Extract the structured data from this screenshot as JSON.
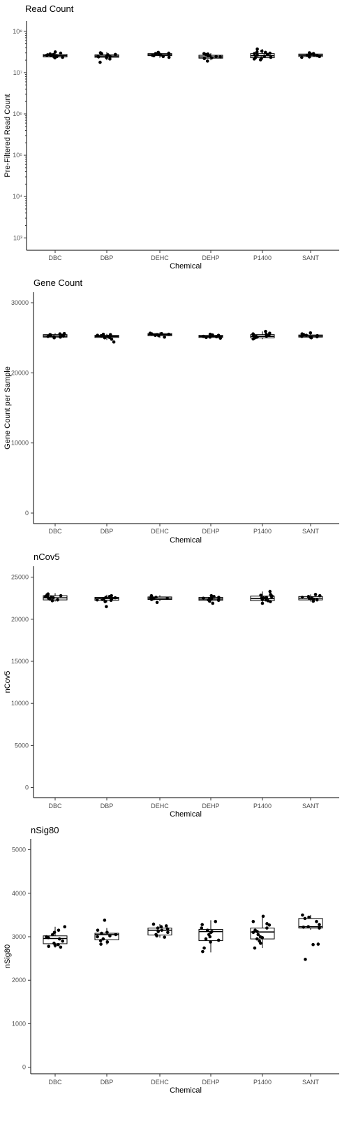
{
  "chart_data": [
    {
      "type": "box",
      "title": "Read Count",
      "xlabel": "Chemical",
      "ylabel": "Pre-Filtered Read Count",
      "yscale": "log10",
      "ylim_exp": [
        2.7,
        8.25
      ],
      "yticks": [
        {
          "exp": 3,
          "label": "10³"
        },
        {
          "exp": 4,
          "label": "10⁴"
        },
        {
          "exp": 5,
          "label": "10⁵"
        },
        {
          "exp": 6,
          "label": "10⁶"
        },
        {
          "exp": 7,
          "label": "10⁷"
        },
        {
          "exp": 8,
          "label": "10⁸"
        }
      ],
      "categories": [
        "DBC",
        "DBP",
        "DEHC",
        "DEHP",
        "P1400",
        "SANT"
      ],
      "boxes_exp": [
        {
          "min": 7.35,
          "q1": 7.38,
          "median": 7.41,
          "q3": 7.44,
          "max": 7.52
        },
        {
          "min": 7.3,
          "q1": 7.37,
          "median": 7.4,
          "q3": 7.43,
          "max": 7.5
        },
        {
          "min": 7.36,
          "q1": 7.41,
          "median": 7.43,
          "q3": 7.46,
          "max": 7.5
        },
        {
          "min": 7.3,
          "q1": 7.35,
          "median": 7.38,
          "q3": 7.42,
          "max": 7.47
        },
        {
          "min": 7.31,
          "q1": 7.36,
          "median": 7.41,
          "q3": 7.46,
          "max": 7.57
        },
        {
          "min": 7.36,
          "q1": 7.39,
          "median": 7.42,
          "q3": 7.45,
          "max": 7.5
        }
      ],
      "points_exp": [
        [
          7.36,
          7.4,
          7.43,
          7.45,
          7.38,
          7.5,
          7.42,
          7.37,
          7.39,
          7.44,
          7.41,
          7.47
        ],
        [
          7.33,
          7.38,
          7.41,
          7.46,
          7.39,
          7.25,
          7.43,
          7.36,
          7.48,
          7.4,
          7.44
        ],
        [
          7.37,
          7.42,
          7.45,
          7.47,
          7.41,
          7.49,
          7.43,
          7.39,
          7.46
        ],
        [
          7.34,
          7.38,
          7.41,
          7.44,
          7.36,
          7.28,
          7.46,
          7.39,
          7.42,
          7.45
        ],
        [
          7.33,
          7.37,
          7.42,
          7.47,
          7.52,
          7.57,
          7.4,
          7.31,
          7.44,
          7.49,
          7.36,
          7.5,
          7.35,
          7.46
        ],
        [
          7.37,
          7.4,
          7.43,
          7.46,
          7.39,
          7.42,
          7.48,
          7.45,
          7.38,
          7.41
        ]
      ]
    },
    {
      "type": "box",
      "title": "Gene Count",
      "xlabel": "Chemical",
      "ylabel": "Gene Count per Sample",
      "ylim": [
        -1500,
        31500
      ],
      "yticks": [
        0,
        10000,
        20000,
        30000
      ],
      "categories": [
        "DBC",
        "DBP",
        "DEHC",
        "DEHP",
        "P1400",
        "SANT"
      ],
      "boxes": [
        {
          "min": 24900,
          "q1": 25100,
          "median": 25250,
          "q3": 25450,
          "max": 25650
        },
        {
          "min": 24700,
          "q1": 25050,
          "median": 25200,
          "q3": 25350,
          "max": 25550
        },
        {
          "min": 25000,
          "q1": 25300,
          "median": 25450,
          "q3": 25600,
          "max": 25750
        },
        {
          "min": 24900,
          "q1": 25050,
          "median": 25200,
          "q3": 25350,
          "max": 25550
        },
        {
          "min": 24800,
          "q1": 25000,
          "median": 25200,
          "q3": 25450,
          "max": 25900
        },
        {
          "min": 24950,
          "q1": 25100,
          "median": 25250,
          "q3": 25400,
          "max": 25700
        }
      ],
      "points": [
        [
          25000,
          25150,
          25300,
          25450,
          25550,
          25200,
          25400,
          25100,
          25350,
          25600,
          25250
        ],
        [
          24400,
          24800,
          25050,
          25200,
          25350,
          25500,
          25150,
          25300,
          25000,
          25450
        ],
        [
          25100,
          25350,
          25500,
          25650,
          25450,
          25600,
          25300,
          25550
        ],
        [
          24950,
          25100,
          25250,
          25400,
          25500,
          25200,
          25150,
          25350,
          25050
        ],
        [
          24850,
          25050,
          25250,
          25500,
          25900,
          25650,
          25100,
          25350,
          25200,
          25450,
          24950,
          25550
        ],
        [
          25000,
          25150,
          25300,
          25450,
          25700,
          25200,
          25350,
          25100,
          25550
        ]
      ]
    },
    {
      "type": "box",
      "title": "nCov5",
      "xlabel": "Chemical",
      "ylabel": "nCov5",
      "ylim": [
        -1200,
        26300
      ],
      "yticks": [
        0,
        5000,
        10000,
        15000,
        20000,
        25000
      ],
      "categories": [
        "DBC",
        "DBP",
        "DEHC",
        "DEHP",
        "P1400",
        "SANT"
      ],
      "boxes": [
        {
          "min": 22100,
          "q1": 22300,
          "median": 22550,
          "q3": 22800,
          "max": 23100
        },
        {
          "min": 22000,
          "q1": 22250,
          "median": 22450,
          "q3": 22600,
          "max": 22900
        },
        {
          "min": 22150,
          "q1": 22350,
          "median": 22500,
          "q3": 22650,
          "max": 22850
        },
        {
          "min": 22000,
          "q1": 22250,
          "median": 22400,
          "q3": 22600,
          "max": 22850
        },
        {
          "min": 21900,
          "q1": 22200,
          "median": 22450,
          "q3": 22750,
          "max": 23300
        },
        {
          "min": 22100,
          "q1": 22300,
          "median": 22500,
          "q3": 22700,
          "max": 22950
        }
      ],
      "points": [
        [
          22200,
          22400,
          22600,
          22800,
          23000,
          22500,
          22700,
          22300,
          22900,
          22550,
          22650
        ],
        [
          21500,
          22100,
          22300,
          22450,
          22600,
          22800,
          22400,
          22550,
          22250,
          22700,
          22350
        ],
        [
          22000,
          22350,
          22500,
          22650,
          22800,
          22450,
          22600,
          22550
        ],
        [
          21900,
          22150,
          22300,
          22450,
          22600,
          22800,
          22400,
          22500,
          22250,
          22700
        ],
        [
          21900,
          22100,
          22300,
          22500,
          22700,
          23300,
          22850,
          22400,
          22600,
          22200,
          22950,
          22550,
          22750
        ],
        [
          22150,
          22300,
          22450,
          22600,
          22800,
          22500,
          22400,
          22700,
          22950
        ]
      ]
    },
    {
      "type": "box",
      "title": "nSig80",
      "xlabel": "Chemical",
      "ylabel": "nSig80",
      "ylim": [
        -150,
        5250
      ],
      "yticks": [
        0,
        1000,
        2000,
        3000,
        4000,
        5000
      ],
      "categories": [
        "DBC",
        "DBP",
        "DEHC",
        "DEHP",
        "P1400",
        "SANT"
      ],
      "boxes": [
        {
          "min": 2750,
          "q1": 2840,
          "median": 2960,
          "q3": 3020,
          "max": 3230
        },
        {
          "min": 2820,
          "q1": 2930,
          "median": 3050,
          "q3": 3080,
          "max": 3200
        },
        {
          "min": 2980,
          "q1": 3040,
          "median": 3150,
          "q3": 3200,
          "max": 3290
        },
        {
          "min": 2640,
          "q1": 2910,
          "median": 3120,
          "q3": 3170,
          "max": 3380
        },
        {
          "min": 2740,
          "q1": 2950,
          "median": 3110,
          "q3": 3200,
          "max": 3470
        },
        {
          "min": 3160,
          "q1": 3200,
          "median": 3230,
          "q3": 3420,
          "max": 3500
        }
      ],
      "points": [
        [
          2760,
          2800,
          2850,
          2900,
          2950,
          3000,
          3050,
          3100,
          3230,
          2820,
          2980,
          3150,
          2780
        ],
        [
          2830,
          2880,
          2950,
          3000,
          3050,
          3100,
          3150,
          3380,
          2910,
          3020,
          3080
        ],
        [
          2990,
          3050,
          3100,
          3150,
          3200,
          3250,
          3290,
          3020,
          3120,
          3180,
          3230
        ],
        [
          2660,
          2740,
          2880,
          2950,
          3050,
          3100,
          3150,
          3200,
          3280,
          3350,
          3000,
          3120,
          2920
        ],
        [
          2740,
          2850,
          2950,
          3000,
          3100,
          3150,
          3200,
          3270,
          3350,
          3470,
          3050,
          2900,
          3120,
          3300,
          2980
        ],
        [
          2480,
          2820,
          2830,
          3200,
          3230,
          3280,
          3350,
          3450,
          3500,
          3420,
          3220
        ]
      ]
    }
  ]
}
